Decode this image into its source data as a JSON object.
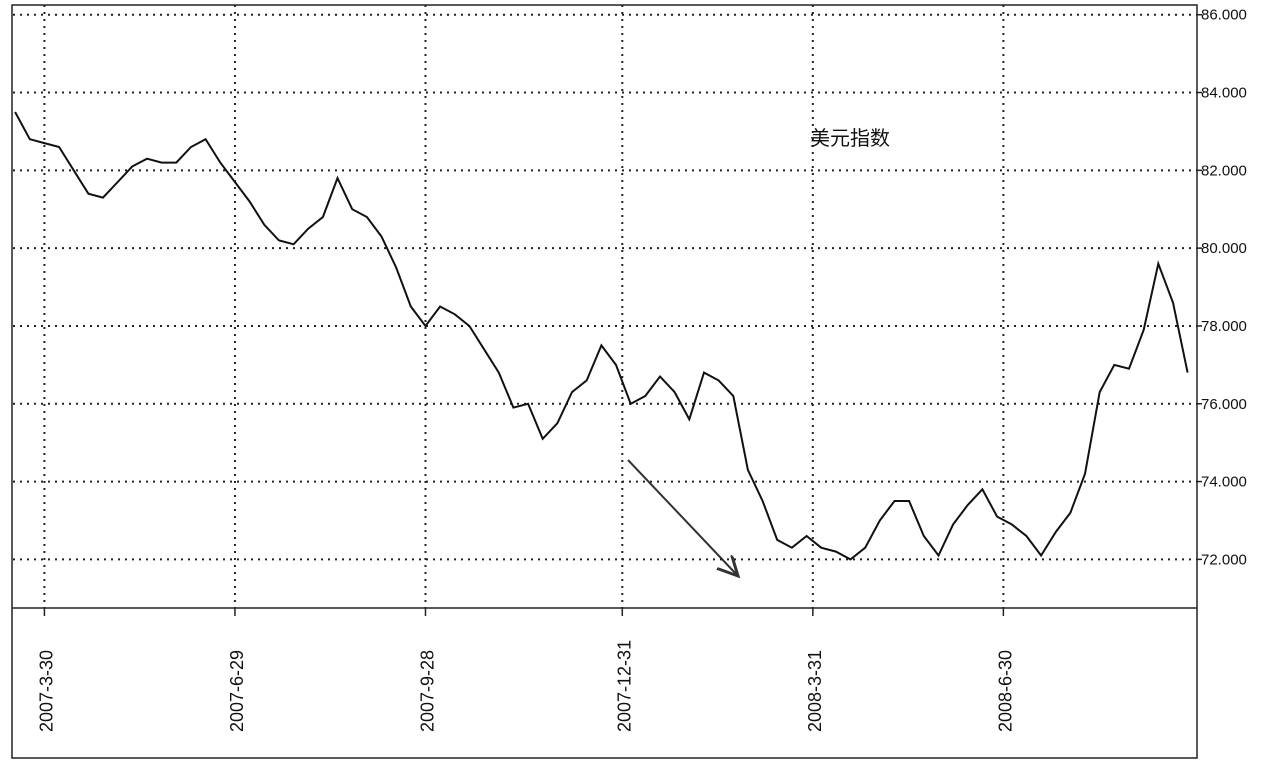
{
  "chart_data": {
    "type": "line",
    "title": "美元指数",
    "x": [
      "2007-3-16",
      "2007-3-23",
      "2007-3-30",
      "2007-4-6",
      "2007-4-13",
      "2007-4-20",
      "2007-4-27",
      "2007-5-4",
      "2007-5-11",
      "2007-5-18",
      "2007-5-25",
      "2007-6-1",
      "2007-6-8",
      "2007-6-15",
      "2007-6-22",
      "2007-6-29",
      "2007-7-6",
      "2007-7-13",
      "2007-7-20",
      "2007-7-27",
      "2007-8-3",
      "2007-8-10",
      "2007-8-17",
      "2007-8-24",
      "2007-8-31",
      "2007-9-7",
      "2007-9-14",
      "2007-9-21",
      "2007-9-28",
      "2007-10-5",
      "2007-10-12",
      "2007-10-19",
      "2007-10-26",
      "2007-11-2",
      "2007-11-9",
      "2007-11-16",
      "2007-11-23",
      "2007-11-30",
      "2007-12-7",
      "2007-12-14",
      "2007-12-21",
      "2007-12-28",
      "2008-1-4",
      "2008-1-11",
      "2008-1-18",
      "2008-1-25",
      "2008-2-1",
      "2008-2-8",
      "2008-2-15",
      "2008-2-22",
      "2008-2-29",
      "2008-3-7",
      "2008-3-14",
      "2008-3-21",
      "2008-3-28",
      "2008-4-4",
      "2008-4-11",
      "2008-4-18",
      "2008-4-25",
      "2008-5-2",
      "2008-5-9",
      "2008-5-16",
      "2008-5-23",
      "2008-5-30",
      "2008-6-6",
      "2008-6-13",
      "2008-6-20",
      "2008-6-27",
      "2008-7-4",
      "2008-7-11",
      "2008-7-18",
      "2008-7-25",
      "2008-8-1",
      "2008-8-8",
      "2008-8-15",
      "2008-8-22",
      "2008-8-29",
      "2008-9-5",
      "2008-9-12",
      "2008-9-19",
      "2008-9-26"
    ],
    "series": [
      {
        "color": "#111111",
        "values": [
          83.5,
          82.8,
          82.7,
          82.6,
          82.0,
          81.4,
          81.3,
          81.7,
          82.1,
          82.3,
          82.2,
          82.2,
          82.6,
          82.8,
          82.2,
          81.7,
          81.2,
          80.6,
          80.2,
          80.1,
          80.5,
          80.8,
          81.8,
          81.0,
          80.8,
          80.3,
          79.5,
          78.5,
          78.0,
          78.5,
          78.3,
          78.0,
          77.4,
          76.8,
          75.9,
          76.0,
          75.1,
          75.5,
          76.3,
          76.6,
          77.5,
          77.0,
          76.0,
          76.2,
          76.7,
          76.3,
          75.6,
          76.8,
          76.6,
          76.2,
          74.3,
          73.5,
          72.5,
          72.3,
          72.6,
          72.3,
          72.2,
          72.0,
          72.3,
          73.0,
          73.5,
          73.5,
          72.6,
          72.1,
          72.9,
          73.4,
          73.8,
          73.1,
          72.9,
          72.6,
          72.1,
          72.7,
          73.2,
          74.2,
          76.3,
          77.0,
          76.9,
          77.9,
          79.6,
          78.6,
          76.8
        ]
      }
    ],
    "xlim": [
      "2007-3-15",
      "2008-9-30"
    ],
    "xticks": [
      "2007-3-30",
      "2007-6-29",
      "2007-9-28",
      "2007-12-31",
      "2008-3-31",
      "2008-6-30"
    ],
    "ylim": [
      70.75,
      86.25
    ],
    "yticks": [
      {
        "value": 72,
        "label": "72.000"
      },
      {
        "value": 74,
        "label": "74.000"
      },
      {
        "value": 76,
        "label": "76.000"
      },
      {
        "value": 78,
        "label": "78.000"
      },
      {
        "value": 80,
        "label": "80.000"
      },
      {
        "value": 82,
        "label": "82.000"
      },
      {
        "value": 84,
        "label": "84.000"
      },
      {
        "value": 86,
        "label": "86.000"
      }
    ],
    "grid": true
  }
}
